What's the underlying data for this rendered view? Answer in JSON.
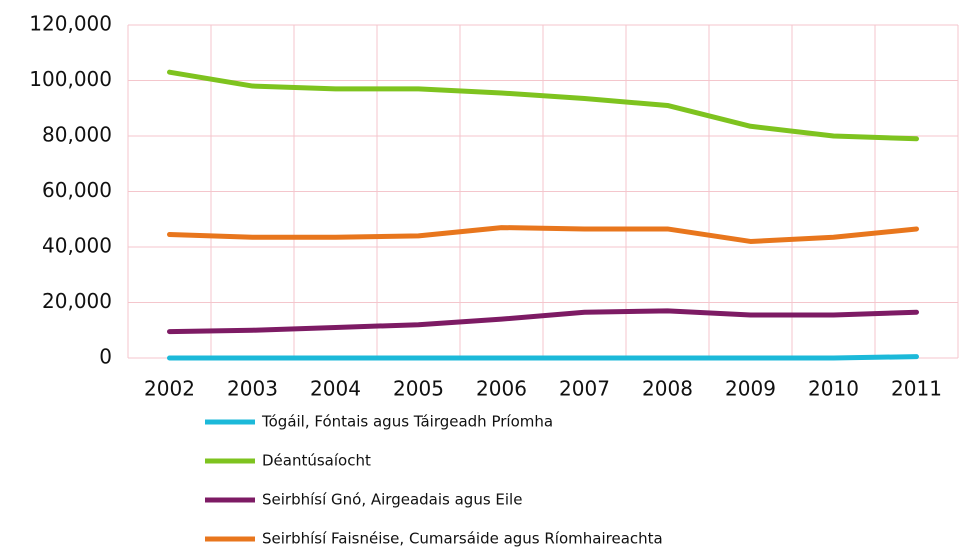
{
  "chart_data": {
    "type": "line",
    "categories": [
      "2002",
      "2003",
      "2004",
      "2005",
      "2006",
      "2007",
      "2008",
      "2009",
      "2010",
      "2011"
    ],
    "series": [
      {
        "name": "Tógáil, Fóntais agus Táirgeadh Príomha",
        "color": "#1cb9d9",
        "values": [
          0,
          0,
          0,
          0,
          0,
          0,
          0,
          0,
          0,
          500
        ]
      },
      {
        "name": "Déantúsaíocht",
        "color": "#7ec31f",
        "values": [
          103000,
          98000,
          97000,
          97000,
          95500,
          93500,
          91000,
          83500,
          80000,
          79000
        ]
      },
      {
        "name": "Seirbhísí Gnó, Airgeadais agus Eile",
        "color": "#7d1b64",
        "values": [
          9500,
          10000,
          11000,
          12000,
          14000,
          16500,
          17000,
          15500,
          15500,
          16500
        ]
      },
      {
        "name": "Seirbhísí Faisnéise, Cumarsáide agus Ríomhaireachta",
        "color": "#e8761d",
        "values": [
          44500,
          43500,
          43500,
          44000,
          47000,
          46500,
          46500,
          42000,
          43500,
          46500
        ]
      }
    ],
    "ylim": [
      0,
      120000
    ],
    "yticks": [
      0,
      {
        "value": 20000,
        "label": "20,000"
      },
      {
        "value": 40000,
        "label": "40,000"
      },
      {
        "value": 60000,
        "label": "60,000"
      },
      {
        "value": 80000,
        "label": "80,000"
      },
      {
        "value": 100000,
        "label": "100,000"
      },
      {
        "value": 120000,
        "label": "120,000"
      }
    ],
    "grid": true
  }
}
